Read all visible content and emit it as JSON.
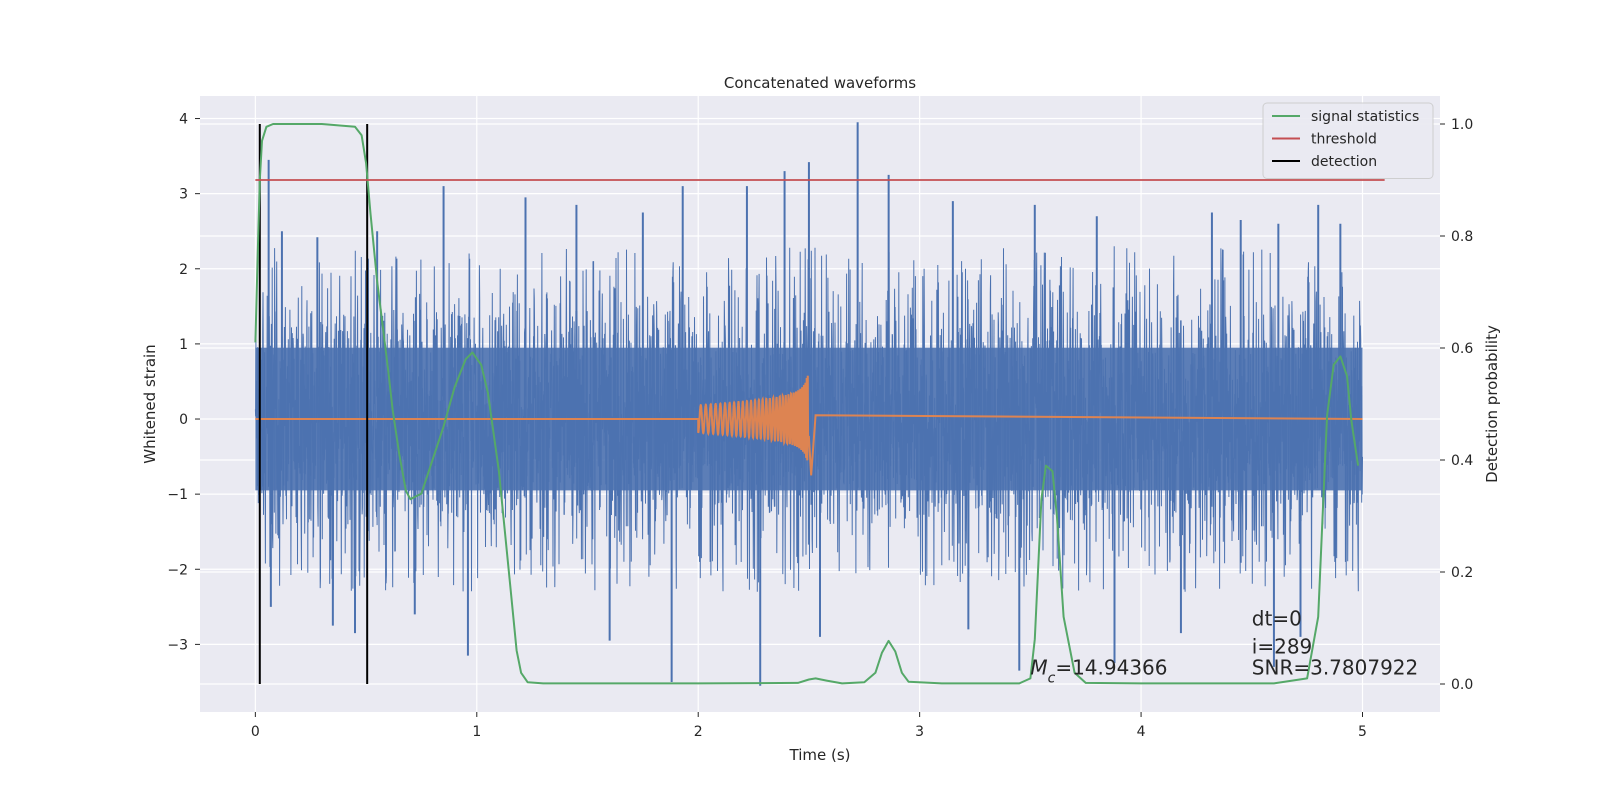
{
  "chart_data": {
    "type": "line",
    "title": "Concatenated waveforms",
    "xlabel": "Time (s)",
    "ylabel_left": "Whitened strain",
    "ylabel_right": "Detection probability",
    "xlim": [
      -0.25,
      5.35
    ],
    "ylim_left": [
      -3.9,
      4.3
    ],
    "ylim_right": [
      -0.05,
      1.05
    ],
    "x_ticks": [
      0,
      1,
      2,
      3,
      4,
      5
    ],
    "y_left_ticks": [
      -3,
      -2,
      -1,
      0,
      1,
      2,
      3,
      4
    ],
    "y_right_ticks": [
      0.0,
      0.2,
      0.4,
      0.6,
      0.8,
      1.0
    ],
    "grid": true,
    "legend_position": "top-right",
    "style": {
      "background": "#eaeaf2",
      "grid_color": "#ffffff",
      "noise_color": "#4c72b0",
      "template_color": "#dd8452",
      "stat_color": "#55a868",
      "threshold_color": "#c44e52",
      "detection_color": "#000000"
    },
    "series": [
      {
        "name": "",
        "axis": "left",
        "kind": "whitened_noise",
        "x_range": [
          0,
          5
        ],
        "core_amplitude": 0.6,
        "spikes": [
          {
            "x": 0.06,
            "y": 3.45
          },
          {
            "x": 0.12,
            "y": 2.5
          },
          {
            "x": 0.28,
            "y": 2.42
          },
          {
            "x": 0.55,
            "y": 2.5
          },
          {
            "x": 0.85,
            "y": 3.1
          },
          {
            "x": 1.22,
            "y": 2.95
          },
          {
            "x": 1.45,
            "y": 2.85
          },
          {
            "x": 1.75,
            "y": 2.75
          },
          {
            "x": 1.93,
            "y": 3.1
          },
          {
            "x": 2.22,
            "y": 3.1
          },
          {
            "x": 2.39,
            "y": 3.3
          },
          {
            "x": 2.5,
            "y": 3.42
          },
          {
            "x": 2.72,
            "y": 3.95
          },
          {
            "x": 2.86,
            "y": 3.25
          },
          {
            "x": 3.15,
            "y": 2.9
          },
          {
            "x": 3.52,
            "y": 2.85
          },
          {
            "x": 3.8,
            "y": 2.7
          },
          {
            "x": 4.32,
            "y": 2.75
          },
          {
            "x": 4.45,
            "y": 2.65
          },
          {
            "x": 4.62,
            "y": 2.6
          },
          {
            "x": 4.8,
            "y": 2.85
          },
          {
            "x": 4.9,
            "y": 2.6
          },
          {
            "x": 0.07,
            "y": -2.5
          },
          {
            "x": 0.35,
            "y": -2.75
          },
          {
            "x": 0.45,
            "y": -2.85
          },
          {
            "x": 0.72,
            "y": -2.6
          },
          {
            "x": 0.96,
            "y": -3.15
          },
          {
            "x": 1.6,
            "y": -2.95
          },
          {
            "x": 1.88,
            "y": -3.5
          },
          {
            "x": 2.28,
            "y": -3.55
          },
          {
            "x": 2.55,
            "y": -2.9
          },
          {
            "x": 3.22,
            "y": -2.8
          },
          {
            "x": 3.45,
            "y": -3.35
          },
          {
            "x": 3.88,
            "y": -3.25
          },
          {
            "x": 4.18,
            "y": -2.85
          },
          {
            "x": 4.6,
            "y": -3.3
          },
          {
            "x": 4.72,
            "y": -2.9
          }
        ]
      },
      {
        "name": "",
        "axis": "left",
        "kind": "chirp",
        "x_range": [
          0,
          5
        ],
        "chirp_start": 2.0,
        "merger": 2.5,
        "peak_amplitude": 0.62
      },
      {
        "name": "signal statistics",
        "axis": "right",
        "x": [
          0,
          0.01,
          0.02,
          0.03,
          0.05,
          0.08,
          0.3,
          0.45,
          0.48,
          0.5,
          0.52,
          0.55,
          0.6,
          0.62,
          0.65,
          0.68,
          0.7,
          0.75,
          0.8,
          0.85,
          0.9,
          0.95,
          0.98,
          1.02,
          1.05,
          1.1,
          1.15,
          1.18,
          1.2,
          1.23,
          1.3,
          2.0,
          2.45,
          2.5,
          2.53,
          2.58,
          2.65,
          2.75,
          2.8,
          2.83,
          2.86,
          2.89,
          2.92,
          2.95,
          3.1,
          3.45,
          3.5,
          3.52,
          3.55,
          3.57,
          3.6,
          3.62,
          3.65,
          3.7,
          3.75,
          4.0,
          4.6,
          4.75,
          4.8,
          4.82,
          4.84,
          4.87,
          4.9,
          4.93,
          4.95,
          4.98
        ],
        "y": [
          0.61,
          0.76,
          0.9,
          0.97,
          0.995,
          1.0,
          1.0,
          0.995,
          0.98,
          0.93,
          0.84,
          0.72,
          0.56,
          0.49,
          0.41,
          0.345,
          0.33,
          0.34,
          0.4,
          0.46,
          0.53,
          0.58,
          0.592,
          0.57,
          0.52,
          0.38,
          0.18,
          0.06,
          0.02,
          0.003,
          0.001,
          0.001,
          0.002,
          0.008,
          0.01,
          0.006,
          0.001,
          0.003,
          0.02,
          0.056,
          0.077,
          0.058,
          0.02,
          0.004,
          0.001,
          0.001,
          0.01,
          0.08,
          0.33,
          0.39,
          0.38,
          0.3,
          0.12,
          0.02,
          0.002,
          0.001,
          0.001,
          0.01,
          0.12,
          0.3,
          0.48,
          0.57,
          0.585,
          0.55,
          0.47,
          0.39
        ]
      },
      {
        "name": "threshold",
        "axis": "right",
        "x": [
          0,
          5.1
        ],
        "y": [
          0.9,
          0.9
        ]
      },
      {
        "name": "detection",
        "axis": "right",
        "kind": "vlines",
        "x": [
          0.02,
          0.505
        ],
        "y_range": [
          0.0,
          1.0
        ]
      }
    ],
    "annotations": [
      {
        "text": "$M_c$=14.94366",
        "parts": [
          {
            "text": "M",
            "italic": true
          },
          {
            "text": "c",
            "sub": true,
            "italic": true
          },
          {
            "text": "=14.94366"
          }
        ],
        "x": 3.5,
        "y": -3.4
      },
      {
        "text": "dt=0",
        "x": 4.5,
        "y": -2.75
      },
      {
        "text": "i=289",
        "x": 4.5,
        "y": -3.12
      },
      {
        "text": "SNR=3.7807922",
        "x": 4.5,
        "y": -3.4
      }
    ]
  }
}
